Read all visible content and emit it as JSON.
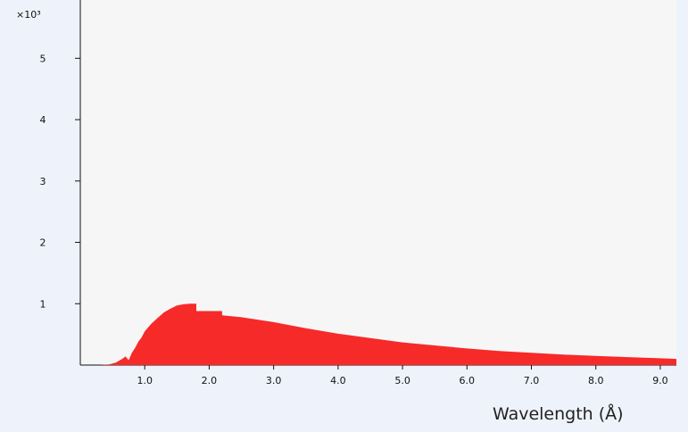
{
  "chart_data": {
    "type": "area",
    "title": "",
    "xlabel": "Wavelength (Å)",
    "ylabel": "",
    "y_multiplier_label": "×10³",
    "xlim": [
      0.0,
      9.25
    ],
    "ylim": [
      0,
      5.95
    ],
    "x_ticks": [
      1,
      2,
      3,
      4,
      5,
      6,
      7,
      8,
      9
    ],
    "x_tick_labels": [
      "1.0",
      "2.0",
      "3.0",
      "4.0",
      "5.0",
      "6.0",
      "7.0",
      "8.0",
      "9.0"
    ],
    "y_ticks": [
      1,
      2,
      3,
      4,
      5
    ],
    "y_tick_labels": [
      "1",
      "2",
      "3",
      "4",
      "5"
    ],
    "grid": false,
    "legend": "none",
    "fill_color": "#f72a2a",
    "series": [
      {
        "x": [
          0.3,
          0.45,
          0.55,
          0.6,
          0.65,
          0.7,
          0.75,
          0.8,
          0.85,
          0.9,
          0.95,
          1.0,
          1.1,
          1.2,
          1.3,
          1.4,
          1.5,
          1.6,
          1.7,
          1.8,
          1.8,
          2.2,
          2.2,
          2.5,
          3.0,
          3.5,
          4.0,
          4.5,
          5.0,
          5.5,
          6.0,
          6.5,
          7.0,
          7.5,
          8.0,
          8.5,
          9.0,
          9.25
        ],
        "values": [
          0,
          0.01,
          0.04,
          0.07,
          0.1,
          0.14,
          0.08,
          0.2,
          0.28,
          0.38,
          0.45,
          0.55,
          0.67,
          0.77,
          0.86,
          0.92,
          0.97,
          0.99,
          1.0,
          1.0,
          0.88,
          0.88,
          0.81,
          0.78,
          0.7,
          0.6,
          0.51,
          0.44,
          0.37,
          0.32,
          0.27,
          0.23,
          0.2,
          0.17,
          0.15,
          0.13,
          0.11,
          0.1
        ]
      }
    ]
  }
}
